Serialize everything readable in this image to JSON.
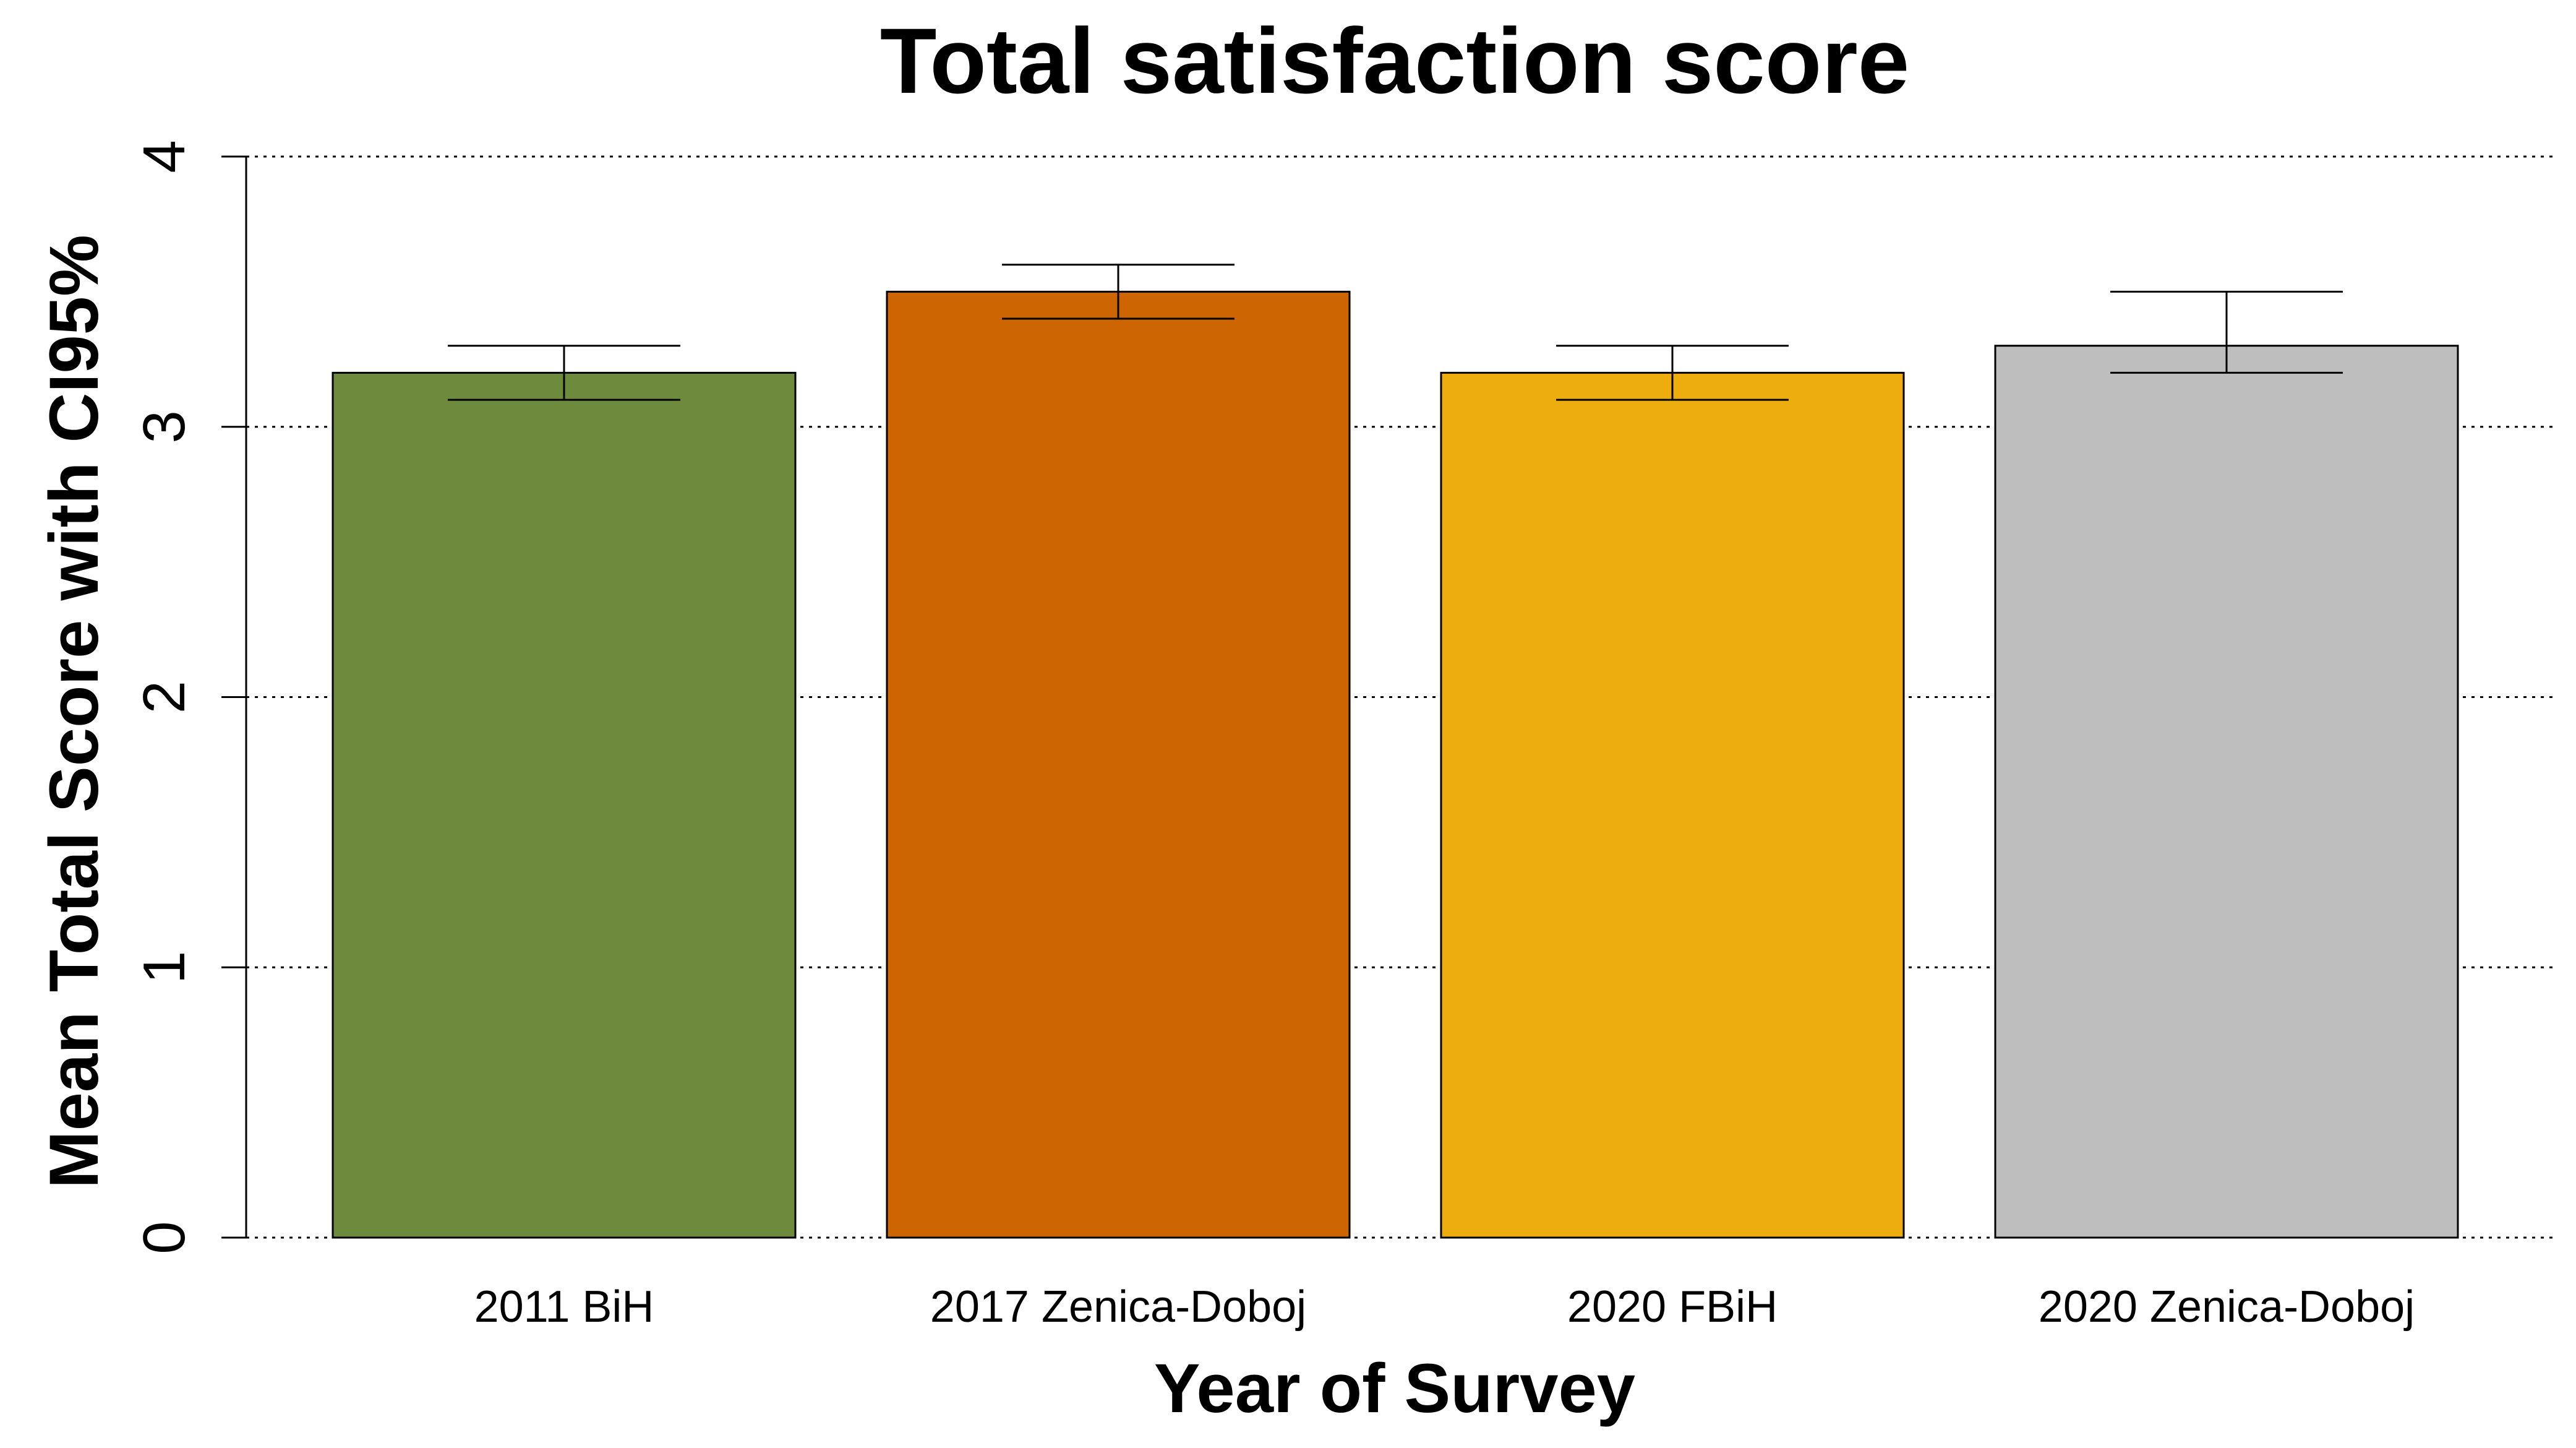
{
  "chart_data": {
    "type": "bar",
    "title": "Total satisfaction score",
    "xlabel": "Year of Survey",
    "ylabel": "Mean Total Score with CI95%",
    "categories": [
      "2011 BiH",
      "2017 Zenica-Doboj",
      "2020 FBiH",
      "2020 Zenica-Doboj"
    ],
    "values": [
      3.2,
      3.5,
      3.2,
      3.3
    ],
    "ci_lower": [
      3.1,
      3.4,
      3.1,
      3.2
    ],
    "ci_upper": [
      3.3,
      3.6,
      3.3,
      3.5
    ],
    "colors": [
      "#6E8B3D",
      "#CD6600",
      "#EEAD0E",
      "#BEBEBE"
    ],
    "ylim": [
      0,
      4
    ],
    "yticks": [
      0,
      1,
      2,
      3,
      4
    ],
    "grid": true,
    "grid_style": "dotted-horizontal",
    "legend": false
  }
}
